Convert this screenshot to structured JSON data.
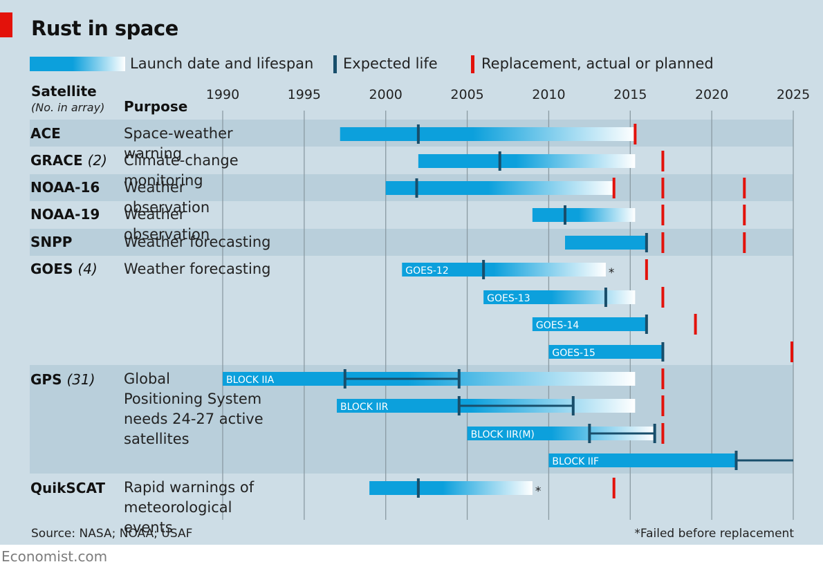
{
  "title": "Rust in space",
  "legend": {
    "lifespan": "Launch date and lifespan",
    "expected": "Expected life",
    "replacement": "Replacement, actual or planned"
  },
  "header": {
    "satellite": "Satellite",
    "count_note": "(No. in array)",
    "purpose": "Purpose"
  },
  "rows": [
    {
      "name": "ACE",
      "count": "",
      "purpose": "Space-weather warning"
    },
    {
      "name": "GRACE",
      "count": "(2)",
      "purpose": "Climate-change monitoring"
    },
    {
      "name": "NOAA-16",
      "count": "",
      "purpose": "Weather observation"
    },
    {
      "name": "NOAA-19",
      "count": "",
      "purpose": "Weather observation"
    },
    {
      "name": "SNPP",
      "count": "",
      "purpose": "Weather forecasting"
    },
    {
      "name": "GOES",
      "count": "(4)",
      "purpose": "Weather forecasting"
    },
    {
      "name": "GPS",
      "count": "(31)",
      "purpose": "Global\nPositioning System\nneeds 24-27 active\nsatellites"
    },
    {
      "name": "QuikSCAT",
      "count": "",
      "purpose": "Rapid warnings of\nmeteorological events"
    }
  ],
  "source": "Source: NASA; NOAA; USAF",
  "footnote": "*Failed before replacement",
  "brand": "Economist.com",
  "colors": {
    "bar": "#0ca0dc",
    "expected": "#184e6b",
    "replacement": "#e3120b",
    "panel": "#cddde6",
    "band": "#b9cfdb"
  },
  "chart_data": {
    "type": "gantt",
    "xlim": [
      1990,
      2025
    ],
    "x_ticks": [
      1990,
      1995,
      2000,
      2005,
      2010,
      2015,
      2020,
      2025
    ],
    "bars": [
      {
        "satellite": "ACE",
        "label": "",
        "launch": 1997.2,
        "end": 2015.3,
        "fade": true,
        "expected": [
          2002.0
        ],
        "failed": false,
        "replacements": [
          2015.3
        ]
      },
      {
        "satellite": "GRACE",
        "label": "",
        "launch": 2002.0,
        "end": 2015.3,
        "fade": true,
        "expected": [
          2007.0
        ],
        "failed": false,
        "replacements": [
          2017.0
        ]
      },
      {
        "satellite": "NOAA-16",
        "label": "",
        "launch": 2000.0,
        "end": 2014.0,
        "fade": true,
        "expected": [
          2001.9
        ],
        "failed": false,
        "replacements": [
          2014.0,
          2017.0,
          2022.0
        ]
      },
      {
        "satellite": "NOAA-19",
        "label": "",
        "launch": 2009.0,
        "end": 2015.3,
        "fade": true,
        "expected": [
          2011.0
        ],
        "failed": false,
        "replacements": [
          2017.0,
          2022.0
        ]
      },
      {
        "satellite": "SNPP",
        "label": "",
        "launch": 2011.0,
        "end": 2016.0,
        "fade": false,
        "expected": [
          2016.0
        ],
        "failed": false,
        "replacements": [
          2017.0,
          2022.0
        ]
      },
      {
        "satellite": "GOES",
        "label": "GOES-12",
        "launch": 2001.0,
        "end": 2013.5,
        "fade": true,
        "expected": [
          2006.0
        ],
        "failed": true,
        "replacements": [
          2016.0
        ]
      },
      {
        "satellite": "GOES",
        "label": "GOES-13",
        "launch": 2006.0,
        "end": 2015.3,
        "fade": true,
        "expected": [
          2013.5
        ],
        "failed": false,
        "replacements": [
          2017.0
        ]
      },
      {
        "satellite": "GOES",
        "label": "GOES-14",
        "launch": 2009.0,
        "end": 2016.0,
        "fade": false,
        "expected": [
          2016.0
        ],
        "failed": false,
        "replacements": [
          2019.0
        ]
      },
      {
        "satellite": "GOES",
        "label": "GOES-15",
        "launch": 2010.0,
        "end": 2017.0,
        "fade": false,
        "expected": [
          2017.0
        ],
        "failed": false,
        "replacements": [
          2025.0
        ]
      },
      {
        "satellite": "GPS",
        "label": "BLOCK IIA",
        "launch": 1990.0,
        "end": 2015.3,
        "fade": true,
        "expected": [
          1997.5,
          2004.5
        ],
        "failed": false,
        "replacements": [
          2017.0
        ]
      },
      {
        "satellite": "GPS",
        "label": "BLOCK IIR",
        "launch": 1997.0,
        "end": 2015.3,
        "fade": true,
        "expected": [
          2004.5,
          2011.5
        ],
        "failed": false,
        "replacements": [
          2017.0
        ]
      },
      {
        "satellite": "GPS",
        "label": "BLOCK IIR(M)",
        "launch": 2005.0,
        "end": 2016.5,
        "fade": true,
        "expected": [
          2012.5,
          2016.5
        ],
        "failed": false,
        "replacements": [
          2017.0
        ]
      },
      {
        "satellite": "GPS",
        "label": "BLOCK IIF",
        "launch": 2010.0,
        "end": 2021.5,
        "fade": false,
        "expected": [
          2021.5,
          2025.0
        ],
        "failed": false,
        "replacements": []
      },
      {
        "satellite": "QuikSCAT",
        "label": "",
        "launch": 1999.0,
        "end": 2009.0,
        "fade": true,
        "expected": [
          2002.0
        ],
        "failed": true,
        "replacements": [
          2014.0
        ]
      }
    ]
  }
}
